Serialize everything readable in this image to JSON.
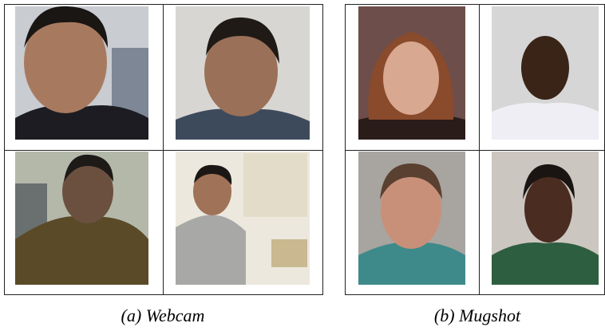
{
  "figure": {
    "panels": [
      {
        "caption": "(a) Webcam"
      },
      {
        "caption": "(b) Mugshot"
      }
    ]
  }
}
